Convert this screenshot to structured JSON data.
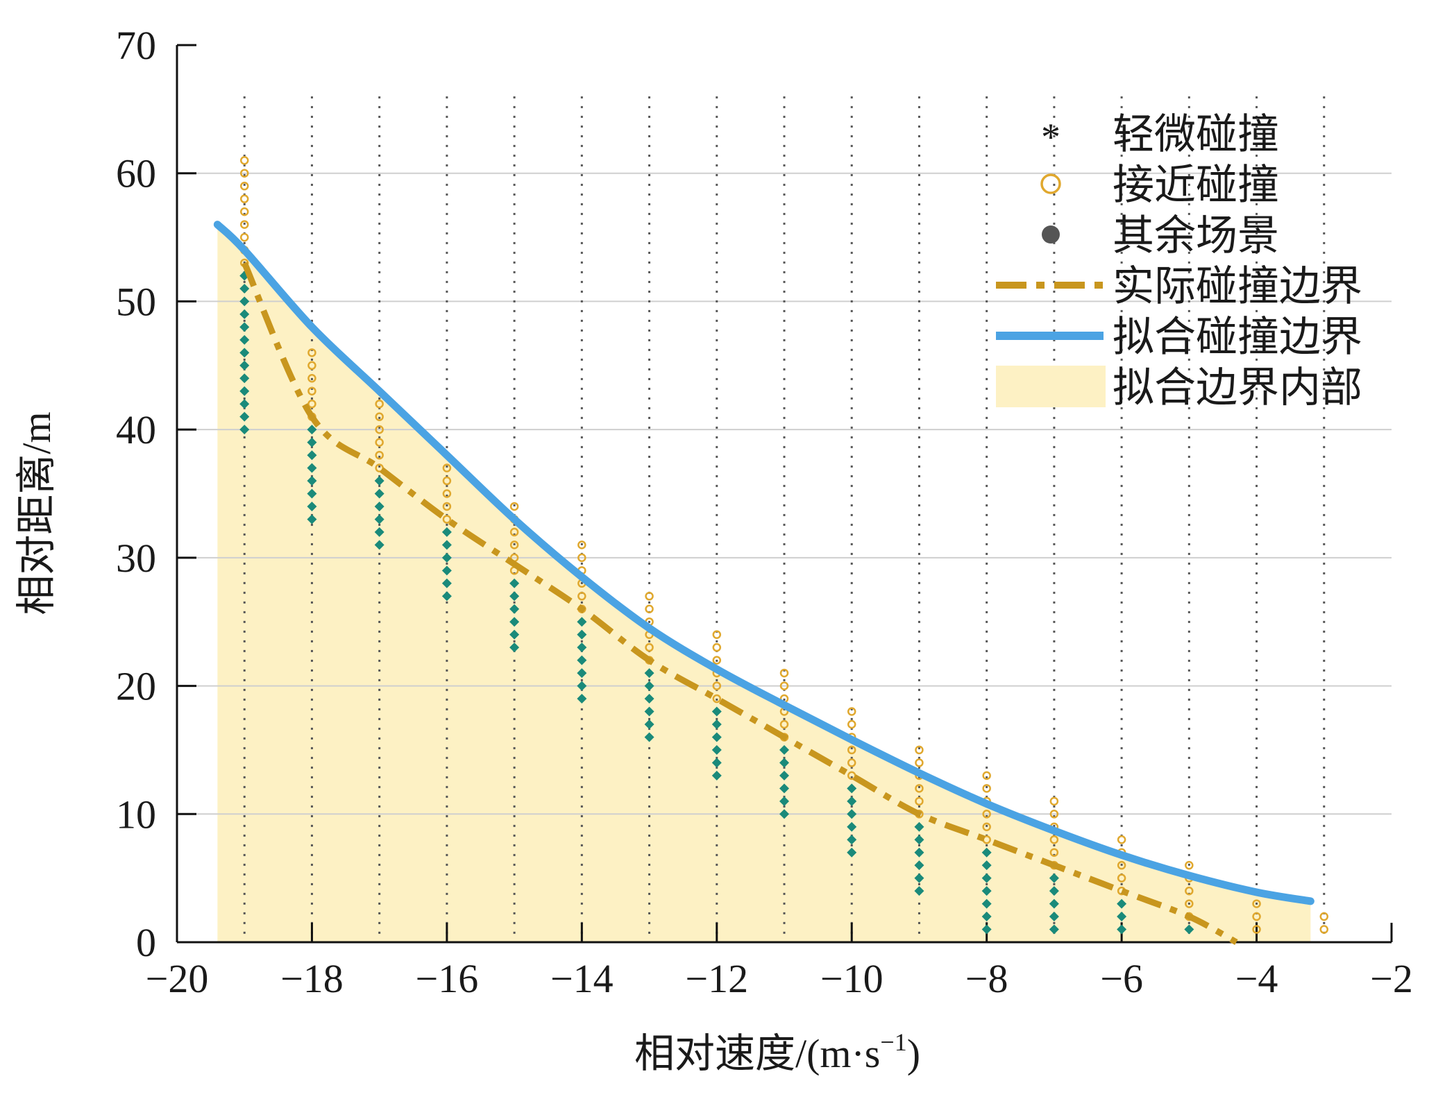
{
  "chart_data": {
    "type": "scatter",
    "xlabel_main": "相对速度/(m·s",
    "xlabel_sup": "−1",
    "xlabel_close": ")",
    "ylabel": "相对距离/m",
    "xlim": [
      -20,
      -2
    ],
    "ylim": [
      0,
      70
    ],
    "xticks": [
      -20,
      -18,
      -16,
      -14,
      -12,
      -10,
      -8,
      -6,
      -4,
      -2
    ],
    "xtick_labels": [
      "−20",
      "−18",
      "−16",
      "−14",
      "−12",
      "−10",
      "−8",
      "−6",
      "−4",
      "−2"
    ],
    "yticks": [
      0,
      10,
      20,
      30,
      40,
      50,
      60,
      70
    ],
    "ytick_labels": [
      "0",
      "10",
      "20",
      "30",
      "40",
      "50",
      "60",
      "70"
    ],
    "grid": "horizontal solid every 10 m from 10 to 60; vertical dotted at each integer speed from -19 to -3",
    "legend_position": "top-right",
    "legend": [
      {
        "label": "轻微碰撞",
        "marker": "asterisk",
        "color": "#1a8a8a"
      },
      {
        "label": "接近碰撞",
        "marker": "circle",
        "color": "#e0a82e"
      },
      {
        "label": "其余场景",
        "marker": "dot",
        "color": "#555555"
      },
      {
        "label": "实际碰撞边界",
        "marker": "dashed-line",
        "color": "#c8961e"
      },
      {
        "label": "拟合碰撞边界",
        "marker": "solid-line",
        "color": "#4ba3e3"
      },
      {
        "label": "拟合边界内部",
        "marker": "area",
        "color": "#fdf1c4"
      }
    ],
    "minor_collision": [
      {
        "x": -19,
        "y_min": 40,
        "y_max": 52
      },
      {
        "x": -18,
        "y_min": 33,
        "y_max": 40
      },
      {
        "x": -17,
        "y_min": 31,
        "y_max": 36
      },
      {
        "x": -16,
        "y_min": 27,
        "y_max": 32
      },
      {
        "x": -15,
        "y_min": 23,
        "y_max": 28
      },
      {
        "x": -14,
        "y_min": 19,
        "y_max": 25
      },
      {
        "x": -13,
        "y_min": 16,
        "y_max": 21
      },
      {
        "x": -12,
        "y_min": 13,
        "y_max": 18
      },
      {
        "x": -11,
        "y_min": 10,
        "y_max": 15
      },
      {
        "x": -10,
        "y_min": 7,
        "y_max": 12
      },
      {
        "x": -9,
        "y_min": 4,
        "y_max": 9
      },
      {
        "x": -8,
        "y_min": 1,
        "y_max": 7
      },
      {
        "x": -7,
        "y_min": 1,
        "y_max": 5
      },
      {
        "x": -6,
        "y_min": 1,
        "y_max": 3
      },
      {
        "x": -5,
        "y_min": 1,
        "y_max": 1
      }
    ],
    "near_collision": [
      {
        "x": -19,
        "y_min": 53,
        "y_max": 61
      },
      {
        "x": -18,
        "y_min": 41,
        "y_max": 46
      },
      {
        "x": -17,
        "y_min": 37,
        "y_max": 42
      },
      {
        "x": -16,
        "y_min": 33,
        "y_max": 37
      },
      {
        "x": -15,
        "y_min": 29,
        "y_max": 34
      },
      {
        "x": -14,
        "y_min": 26,
        "y_max": 31
      },
      {
        "x": -13,
        "y_min": 22,
        "y_max": 27
      },
      {
        "x": -12,
        "y_min": 19,
        "y_max": 24
      },
      {
        "x": -11,
        "y_min": 16,
        "y_max": 21
      },
      {
        "x": -10,
        "y_min": 13,
        "y_max": 18
      },
      {
        "x": -9,
        "y_min": 10,
        "y_max": 15
      },
      {
        "x": -8,
        "y_min": 8,
        "y_max": 13
      },
      {
        "x": -7,
        "y_min": 6,
        "y_max": 11
      },
      {
        "x": -6,
        "y_min": 4,
        "y_max": 8
      },
      {
        "x": -5,
        "y_min": 2,
        "y_max": 6
      },
      {
        "x": -4,
        "y_min": 1,
        "y_max": 3
      },
      {
        "x": -3,
        "y_min": 1,
        "y_max": 2
      }
    ],
    "actual_boundary": {
      "x": [
        -19,
        -18,
        -17,
        -16,
        -15,
        -14,
        -13,
        -12,
        -11,
        -10,
        -9,
        -8,
        -7,
        -6,
        -5,
        -4.3
      ],
      "y": [
        53,
        41,
        37,
        33,
        29.5,
        26,
        22,
        19,
        16,
        13,
        10,
        8,
        6,
        4,
        2,
        0
      ]
    },
    "fitted_boundary": {
      "x": [
        -19.4,
        -19,
        -18,
        -17,
        -16,
        -15,
        -14,
        -13,
        -12,
        -11,
        -10,
        -9,
        -8,
        -7,
        -6,
        -5,
        -4,
        -3.2
      ],
      "y": [
        56,
        54,
        48,
        43,
        38,
        33,
        28.5,
        24.5,
        21.3,
        18.5,
        15.8,
        13.2,
        10.8,
        8.7,
        6.8,
        5.2,
        3.9,
        3.2
      ]
    },
    "fill_region": {
      "x_start": -19.4,
      "x_end": -3.2,
      "color": "#fdf1c4"
    }
  }
}
